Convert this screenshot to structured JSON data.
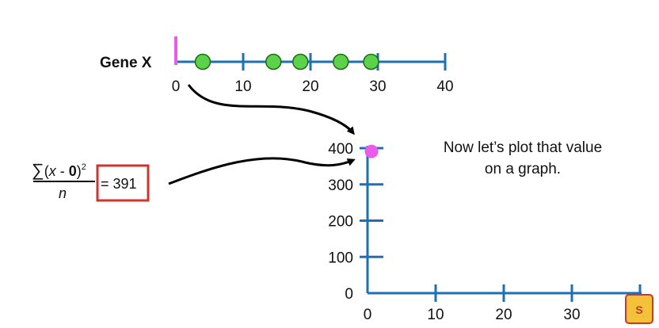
{
  "number_line": {
    "label": "Gene X",
    "ticks": [
      0,
      10,
      20,
      30,
      40
    ],
    "range": [
      0,
      40
    ],
    "data_points": [
      4,
      14.5,
      18.5,
      24.5,
      29
    ],
    "reference_mark": 0
  },
  "formula": {
    "numerator": "∑(x - 0)",
    "sum_symbol": "∑",
    "open": "(",
    "variable": "x",
    "minus": " - ",
    "zero": "0",
    "close": ")",
    "exponent": "2",
    "denominator": "n",
    "result": "= 391"
  },
  "note": {
    "line1": "Now let’s plot that value",
    "line2": "on a graph."
  },
  "chart_data": {
    "type": "scatter",
    "x_ticks": [
      0,
      10,
      20,
      30,
      40
    ],
    "y_ticks": [
      0,
      100,
      200,
      300,
      400
    ],
    "xlim": [
      0,
      40
    ],
    "ylim": [
      0,
      400
    ],
    "points": [
      {
        "x": 0,
        "y": 391
      }
    ]
  },
  "colors": {
    "axis": "#1f6fb5",
    "point": "#5cd24a",
    "point_outline": "#1e6b16",
    "highlight": "#e85ce8",
    "box": "#d0342c",
    "arrow": "#000000"
  },
  "logo": {
    "text": "StatQuest"
  }
}
